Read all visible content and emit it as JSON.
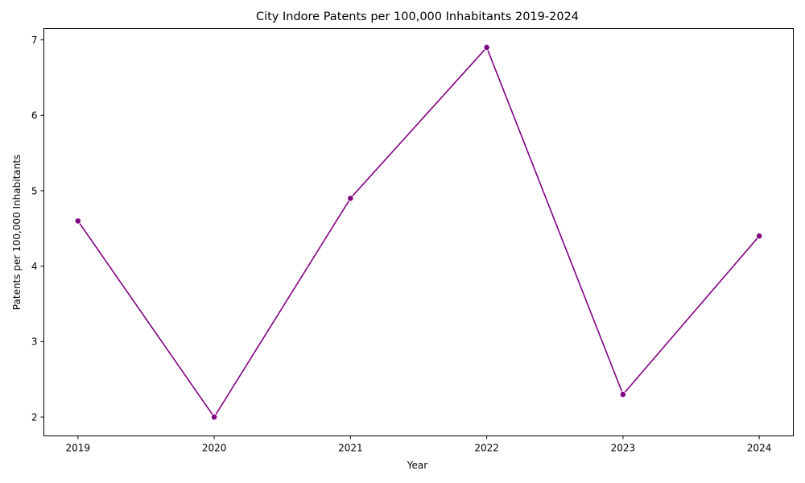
{
  "chart_data": {
    "type": "line",
    "title": "City Indore Patents per 100,000 Inhabitants 2019-2024",
    "xlabel": "Year",
    "ylabel": "Patents per 100,000 Inhabitants",
    "x": [
      "2019",
      "2020",
      "2021",
      "2022",
      "2023",
      "2024"
    ],
    "series": [
      {
        "values": [
          4.6,
          2.0,
          4.9,
          6.9,
          2.3,
          4.4
        ],
        "color": "#800080",
        "marker": "circle"
      }
    ],
    "xlim": [
      2018.75,
      2024.25
    ],
    "ylim": [
      1.75,
      7.15
    ],
    "yticks": [
      2,
      3,
      4,
      5,
      6,
      7
    ],
    "grid": false,
    "legend": "none"
  }
}
